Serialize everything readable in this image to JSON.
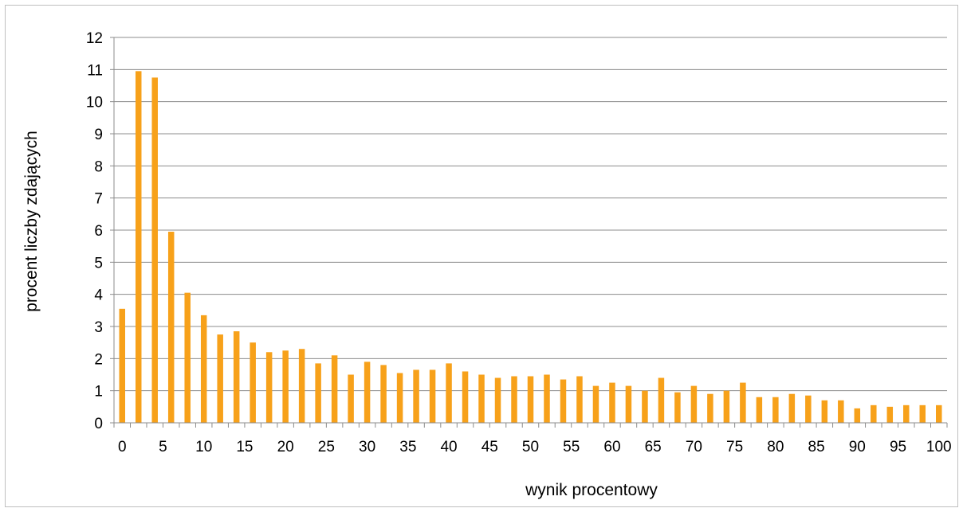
{
  "chart_data": {
    "type": "bar",
    "xlabel": "wynik procentowy",
    "ylabel": "procent liczby zdających",
    "ylim": [
      0,
      12
    ],
    "y_ticks": [
      0,
      1,
      2,
      3,
      4,
      5,
      6,
      7,
      8,
      9,
      10,
      11,
      12
    ],
    "x_tick_labels": [
      "0",
      "5",
      "10",
      "15",
      "20",
      "25",
      "30",
      "35",
      "40",
      "45",
      "50",
      "55",
      "60",
      "65",
      "70",
      "75",
      "80",
      "85",
      "90",
      "95",
      "100"
    ],
    "grid": true,
    "bar_color": "#f7a11a",
    "categories": [
      0,
      2,
      4,
      6,
      8,
      10,
      12,
      14,
      16,
      18,
      20,
      22,
      24,
      26,
      28,
      30,
      32,
      34,
      36,
      38,
      40,
      42,
      44,
      46,
      48,
      50,
      52,
      54,
      56,
      58,
      60,
      62,
      64,
      66,
      68,
      70,
      72,
      74,
      76,
      78,
      80,
      82,
      84,
      86,
      88,
      90,
      92,
      94,
      96,
      98,
      100
    ],
    "values": [
      3.55,
      10.95,
      10.75,
      5.95,
      4.05,
      3.35,
      2.75,
      2.85,
      2.5,
      2.2,
      2.25,
      2.3,
      1.85,
      2.1,
      1.5,
      1.9,
      1.8,
      1.55,
      1.65,
      1.65,
      1.85,
      1.6,
      1.5,
      1.4,
      1.45,
      1.45,
      1.5,
      1.35,
      1.45,
      1.15,
      1.25,
      1.15,
      1.0,
      1.4,
      0.95,
      1.15,
      0.9,
      1.0,
      1.25,
      0.8,
      0.8,
      0.9,
      0.85,
      0.7,
      0.7,
      0.45,
      0.55,
      0.5,
      0.55,
      0.55,
      0.55
    ]
  }
}
